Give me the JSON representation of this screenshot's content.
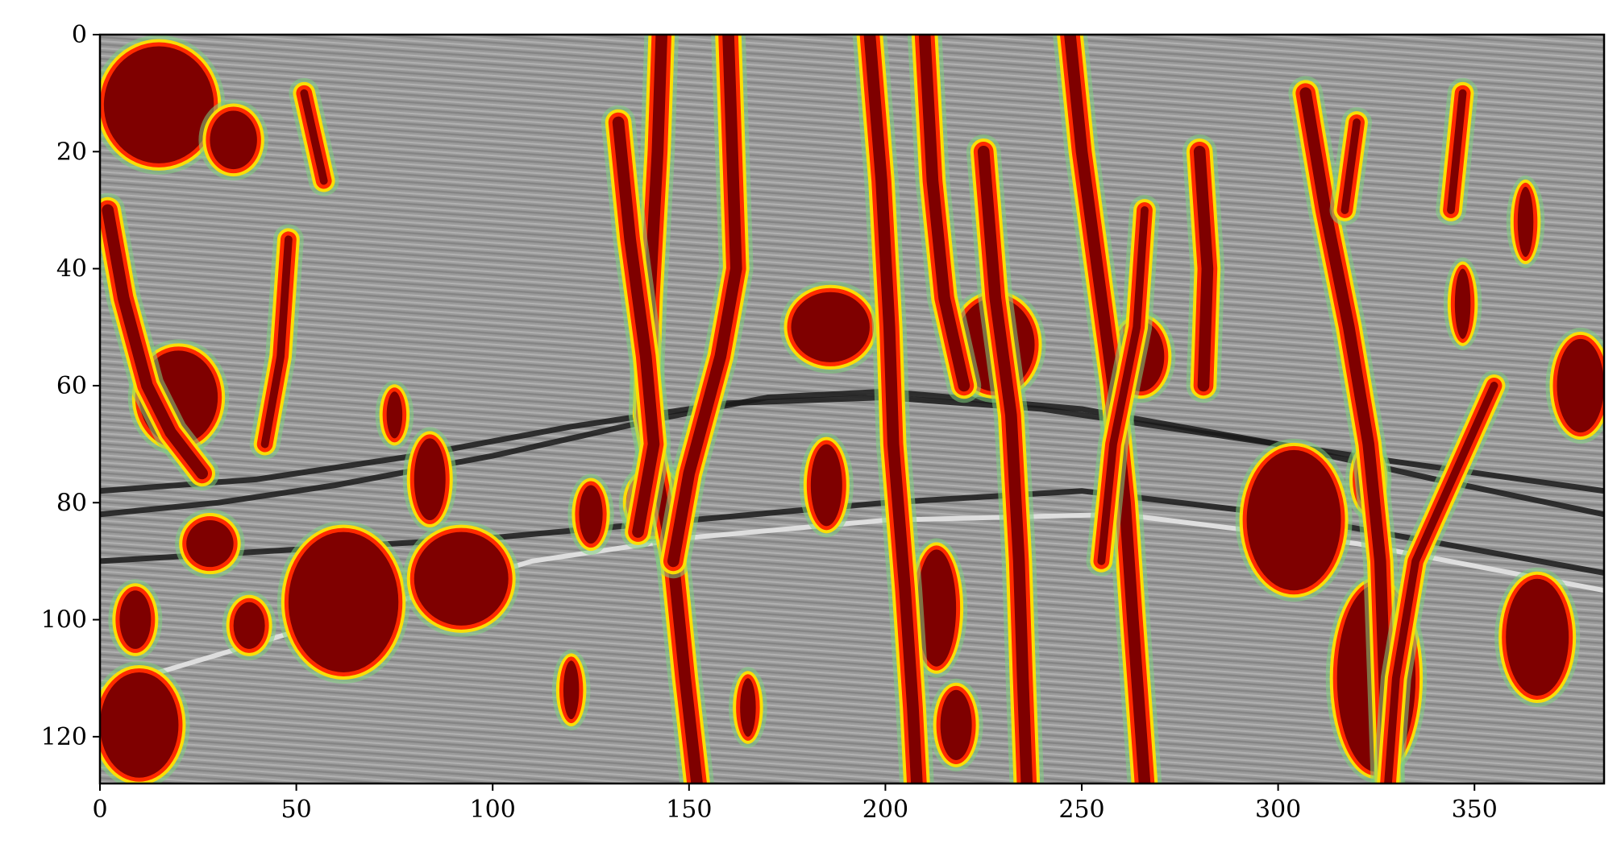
{
  "chart_data": {
    "type": "heatmap",
    "description_of_content": "Seismic section rendered in grayscale with a red-yellow-green fault-likelihood overlay",
    "xlim": [
      0,
      383
    ],
    "ylim": [
      128,
      0
    ],
    "y_inverted": true,
    "x_ticks": [
      0,
      50,
      100,
      150,
      200,
      250,
      300,
      350
    ],
    "y_ticks": [
      0,
      20,
      40,
      60,
      80,
      100,
      120
    ],
    "x_tick_labels": [
      "0",
      "50",
      "100",
      "150",
      "200",
      "250",
      "300",
      "350"
    ],
    "y_tick_labels": [
      "0",
      "20",
      "40",
      "60",
      "80",
      "100",
      "120"
    ],
    "grid": false,
    "colors": {
      "background_base": "#9a9a9a",
      "reflector_dark": "#1a1a1a",
      "reflector_light": "#e6e6e6",
      "overlay_core": "#7f0000",
      "overlay_mid": "#ff2a00",
      "overlay_edge": "#ffe000",
      "overlay_fringe": "#7fd07f"
    },
    "horizons": [
      {
        "name": "",
        "tone": "dark",
        "points": [
          [
            0,
            82
          ],
          [
            30,
            80
          ],
          [
            60,
            77
          ],
          [
            100,
            72
          ],
          [
            140,
            66
          ],
          [
            170,
            62
          ],
          [
            200,
            61
          ],
          [
            250,
            64
          ],
          [
            300,
            70
          ],
          [
            340,
            76
          ],
          [
            383,
            82
          ]
        ]
      },
      {
        "name": "",
        "tone": "dark",
        "points": [
          [
            0,
            78
          ],
          [
            40,
            76
          ],
          [
            80,
            72
          ],
          [
            120,
            67
          ],
          [
            160,
            63
          ],
          [
            200,
            62
          ],
          [
            240,
            64
          ],
          [
            280,
            68
          ],
          [
            330,
            73
          ],
          [
            383,
            78
          ]
        ]
      },
      {
        "name": "",
        "tone": "dark",
        "points": [
          [
            0,
            90
          ],
          [
            50,
            88
          ],
          [
            100,
            86
          ],
          [
            150,
            83
          ],
          [
            200,
            80
          ],
          [
            250,
            78
          ],
          [
            300,
            82
          ],
          [
            350,
            88
          ],
          [
            383,
            92
          ]
        ]
      },
      {
        "name": "",
        "tone": "light",
        "points": [
          [
            0,
            112
          ],
          [
            40,
            104
          ],
          [
            80,
            96
          ],
          [
            110,
            90
          ],
          [
            150,
            86
          ],
          [
            200,
            83
          ],
          [
            260,
            82
          ],
          [
            320,
            87
          ],
          [
            383,
            95
          ]
        ]
      }
    ],
    "fault_traces": [
      {
        "width": 3,
        "points": [
          [
            143,
            0
          ],
          [
            142,
            20
          ],
          [
            140,
            45
          ],
          [
            139,
            65
          ],
          [
            146,
            90
          ],
          [
            149,
            110
          ],
          [
            152,
            128
          ]
        ]
      },
      {
        "width": 3,
        "points": [
          [
            132,
            15
          ],
          [
            135,
            35
          ],
          [
            139,
            55
          ],
          [
            141,
            70
          ],
          [
            137,
            85
          ]
        ]
      },
      {
        "width": 3,
        "points": [
          [
            160,
            0
          ],
          [
            161,
            20
          ],
          [
            162,
            40
          ],
          [
            158,
            55
          ],
          [
            150,
            75
          ],
          [
            146,
            90
          ]
        ]
      },
      {
        "width": 3,
        "points": [
          [
            196,
            0
          ],
          [
            199,
            25
          ],
          [
            201,
            50
          ],
          [
            202,
            70
          ],
          [
            205,
            95
          ],
          [
            207,
            115
          ],
          [
            208,
            128
          ]
        ]
      },
      {
        "width": 3,
        "points": [
          [
            210,
            0
          ],
          [
            212,
            25
          ],
          [
            215,
            45
          ],
          [
            220,
            60
          ]
        ]
      },
      {
        "width": 3,
        "points": [
          [
            225,
            20
          ],
          [
            228,
            45
          ],
          [
            232,
            65
          ],
          [
            234,
            90
          ],
          [
            235,
            110
          ],
          [
            236,
            128
          ]
        ]
      },
      {
        "width": 3,
        "points": [
          [
            247,
            0
          ],
          [
            250,
            20
          ],
          [
            254,
            40
          ],
          [
            258,
            60
          ],
          [
            261,
            80
          ],
          [
            263,
            100
          ],
          [
            266,
            128
          ]
        ]
      },
      {
        "width": 2,
        "points": [
          [
            266,
            30
          ],
          [
            264,
            50
          ],
          [
            258,
            70
          ],
          [
            255,
            90
          ]
        ]
      },
      {
        "width": 3,
        "points": [
          [
            280,
            20
          ],
          [
            282,
            40
          ],
          [
            281,
            60
          ]
        ]
      },
      {
        "width": 3,
        "points": [
          [
            307,
            10
          ],
          [
            312,
            30
          ],
          [
            318,
            50
          ],
          [
            323,
            70
          ],
          [
            326,
            90
          ],
          [
            328,
            128
          ]
        ]
      },
      {
        "width": 2,
        "points": [
          [
            320,
            15
          ],
          [
            317,
            30
          ]
        ]
      },
      {
        "width": 2,
        "points": [
          [
            347,
            10
          ],
          [
            344,
            30
          ]
        ]
      },
      {
        "width": 2,
        "points": [
          [
            355,
            60
          ],
          [
            345,
            75
          ],
          [
            335,
            90
          ],
          [
            330,
            110
          ],
          [
            328,
            128
          ]
        ]
      },
      {
        "width": 3,
        "points": [
          [
            2,
            30
          ],
          [
            6,
            45
          ],
          [
            12,
            60
          ],
          [
            18,
            68
          ],
          [
            26,
            75
          ]
        ]
      },
      {
        "width": 2,
        "points": [
          [
            48,
            35
          ],
          [
            46,
            55
          ],
          [
            42,
            70
          ]
        ]
      },
      {
        "width": 2,
        "points": [
          [
            52,
            10
          ],
          [
            57,
            25
          ]
        ]
      }
    ],
    "fault_blobs": [
      {
        "cx": 15,
        "cy": 12,
        "rx": 14,
        "ry": 10
      },
      {
        "cx": 34,
        "cy": 18,
        "rx": 6,
        "ry": 5
      },
      {
        "cx": 20,
        "cy": 62,
        "rx": 10,
        "ry": 8
      },
      {
        "cx": 28,
        "cy": 87,
        "rx": 6,
        "ry": 4
      },
      {
        "cx": 62,
        "cy": 97,
        "rx": 14,
        "ry": 12
      },
      {
        "cx": 92,
        "cy": 93,
        "rx": 12,
        "ry": 8
      },
      {
        "cx": 84,
        "cy": 76,
        "rx": 4,
        "ry": 7
      },
      {
        "cx": 75,
        "cy": 65,
        "rx": 2,
        "ry": 4
      },
      {
        "cx": 10,
        "cy": 118,
        "rx": 10,
        "ry": 9
      },
      {
        "cx": 9,
        "cy": 100,
        "rx": 4,
        "ry": 5
      },
      {
        "cx": 38,
        "cy": 101,
        "rx": 4,
        "ry": 4
      },
      {
        "cx": 186,
        "cy": 50,
        "rx": 10,
        "ry": 6
      },
      {
        "cx": 185,
        "cy": 77,
        "rx": 4,
        "ry": 7
      },
      {
        "cx": 228,
        "cy": 53,
        "rx": 10,
        "ry": 8
      },
      {
        "cx": 213,
        "cy": 98,
        "rx": 5,
        "ry": 10
      },
      {
        "cx": 218,
        "cy": 118,
        "rx": 4,
        "ry": 6
      },
      {
        "cx": 265,
        "cy": 55,
        "rx": 6,
        "ry": 6
      },
      {
        "cx": 304,
        "cy": 83,
        "rx": 12,
        "ry": 12
      },
      {
        "cx": 325,
        "cy": 110,
        "rx": 10,
        "ry": 16
      },
      {
        "cx": 366,
        "cy": 103,
        "rx": 8,
        "ry": 10
      },
      {
        "cx": 377,
        "cy": 60,
        "rx": 6,
        "ry": 8
      },
      {
        "cx": 141,
        "cy": 80,
        "rx": 6,
        "ry": 5
      },
      {
        "cx": 125,
        "cy": 82,
        "rx": 3,
        "ry": 5
      },
      {
        "cx": 165,
        "cy": 115,
        "rx": 2,
        "ry": 5
      },
      {
        "cx": 120,
        "cy": 112,
        "rx": 2,
        "ry": 5
      },
      {
        "cx": 363,
        "cy": 32,
        "rx": 2,
        "ry": 6
      },
      {
        "cx": 347,
        "cy": 46,
        "rx": 2,
        "ry": 6
      },
      {
        "cx": 323,
        "cy": 76,
        "rx": 3,
        "ry": 5
      }
    ]
  }
}
